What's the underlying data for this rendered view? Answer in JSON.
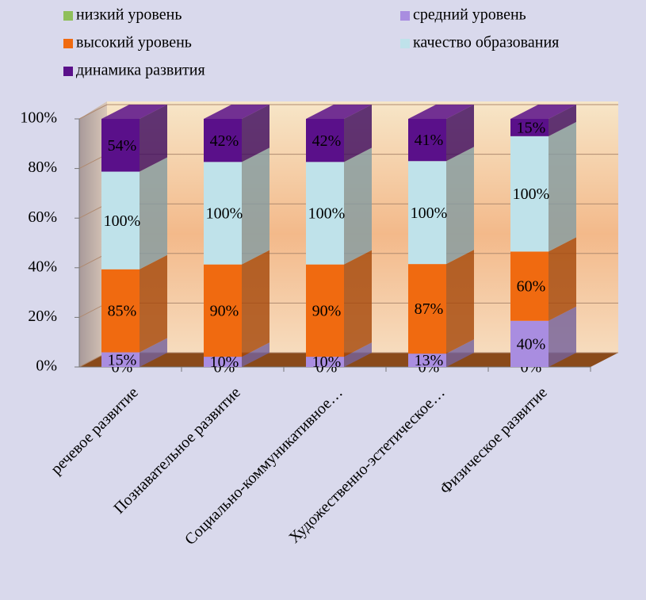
{
  "chart_data": {
    "type": "bar",
    "stacking": "percent",
    "categories": [
      "речевое развитие",
      "Познавательное развитие",
      "Социально-коммуникативное…",
      "Художественно-эстетическое…",
      "Физическое развитие"
    ],
    "series": [
      {
        "name": "низкий уровень",
        "color": "#8fbf5a",
        "values": [
          0,
          0,
          0,
          0,
          0
        ],
        "value_labels": [
          "0%",
          "0%",
          "0%",
          "0%",
          "0%"
        ]
      },
      {
        "name": "средний уровень",
        "color": "#a98de0",
        "values": [
          15,
          10,
          10,
          13,
          40
        ],
        "value_labels": [
          "15%",
          "10%",
          "10%",
          "13%",
          "40%"
        ]
      },
      {
        "name": "высокий уровень",
        "color": "#f06a10",
        "values": [
          85,
          90,
          90,
          87,
          60
        ],
        "value_labels": [
          "85%",
          "90%",
          "90%",
          "87%",
          "60%"
        ]
      },
      {
        "name": "качество образования",
        "color": "#bfe2ea",
        "values": [
          100,
          100,
          100,
          100,
          100
        ],
        "value_labels": [
          "100%",
          "100%",
          "100%",
          "100%",
          "100%"
        ]
      },
      {
        "name": "динамика развития",
        "color": "#5a108a",
        "values": [
          54,
          42,
          42,
          41,
          15
        ],
        "value_labels": [
          "54%",
          "42%",
          "42%",
          "41%",
          "15%"
        ]
      }
    ],
    "ylim": [
      0,
      100
    ],
    "yticks": [
      {
        "value": 0,
        "label": "0%"
      },
      {
        "value": 20,
        "label": "20%"
      },
      {
        "value": 40,
        "label": "40%"
      },
      {
        "value": 60,
        "label": "60%"
      },
      {
        "value": 80,
        "label": "80%"
      },
      {
        "value": 100,
        "label": "100%"
      }
    ],
    "grid": true
  }
}
